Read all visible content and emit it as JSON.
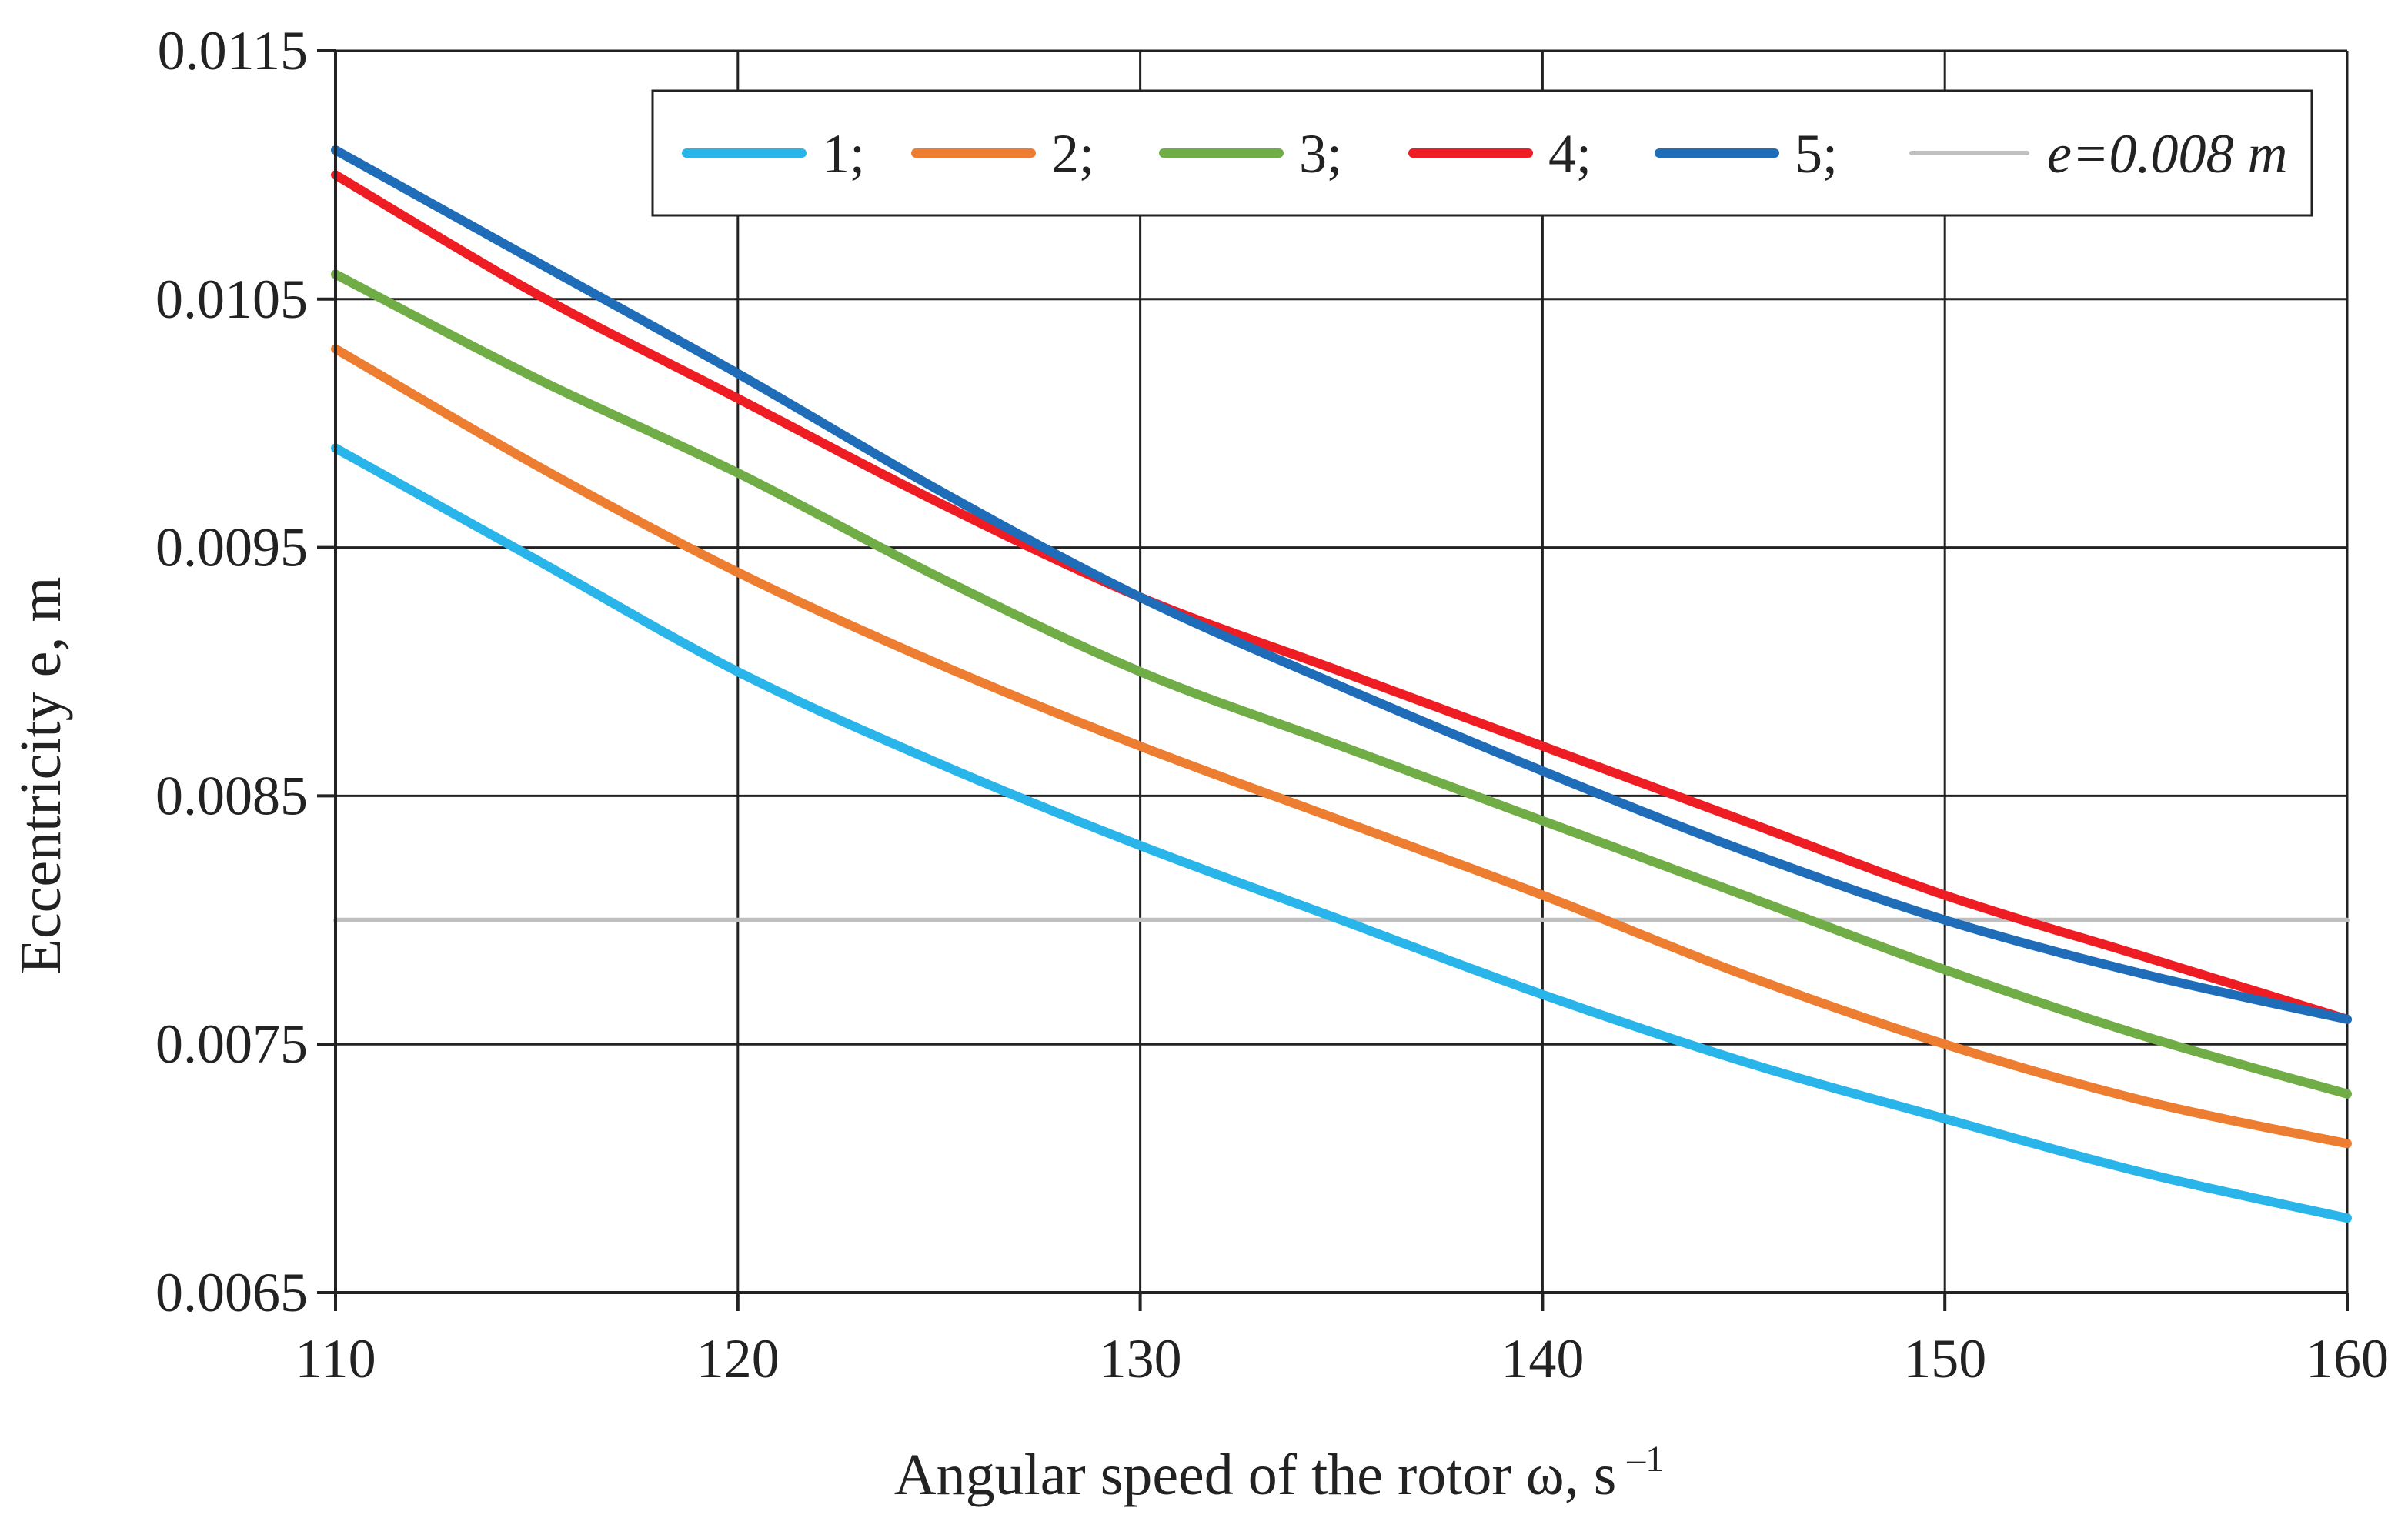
{
  "chart_data": {
    "type": "line",
    "title": "",
    "xlabel": "Angular speed of the rotor ω, s",
    "xlabel_superscript": "–1",
    "ylabel": "Eccentricity e, m",
    "xlim": [
      110,
      160
    ],
    "ylim": [
      0.0065,
      0.0115
    ],
    "x_ticks": [
      110,
      120,
      130,
      140,
      150,
      160
    ],
    "x_tick_labels": [
      "110",
      "120",
      "130",
      "140",
      "150",
      "160"
    ],
    "y_ticks": [
      0.0065,
      0.0075,
      0.0085,
      0.0095,
      0.0105,
      0.0115
    ],
    "y_tick_labels": [
      "0.0065",
      "0.0075",
      "0.0085",
      "0.0095",
      "0.0105",
      "0.0115"
    ],
    "grid": true,
    "legend_position": "top-right",
    "series": [
      {
        "name": "1;",
        "color": "#29b5ea",
        "x": [
          110,
          115,
          120,
          125,
          130,
          135,
          140,
          145,
          150,
          155,
          160
        ],
        "values": [
          0.0099,
          0.00945,
          0.009,
          0.00863,
          0.0083,
          0.008,
          0.0077,
          0.00743,
          0.0072,
          0.00698,
          0.0068
        ]
      },
      {
        "name": "2;",
        "color": "#ed7d31",
        "x": [
          110,
          115,
          120,
          125,
          130,
          135,
          140,
          145,
          150,
          155,
          160
        ],
        "values": [
          0.0103,
          0.00983,
          0.0094,
          0.00903,
          0.0087,
          0.0084,
          0.0081,
          0.00778,
          0.0075,
          0.00727,
          0.0071
        ]
      },
      {
        "name": "3;",
        "color": "#70ad47",
        "x": [
          110,
          115,
          120,
          125,
          130,
          135,
          140,
          145,
          150,
          155,
          160
        ],
        "values": [
          0.0106,
          0.01018,
          0.0098,
          0.00938,
          0.009,
          0.0087,
          0.0084,
          0.0081,
          0.0078,
          0.00753,
          0.0073
        ]
      },
      {
        "name": "4;",
        "color": "#ee1c23",
        "x": [
          110,
          115,
          120,
          125,
          130,
          135,
          140,
          145,
          150,
          155,
          160
        ],
        "values": [
          0.011,
          0.01052,
          0.0101,
          0.00968,
          0.0093,
          0.009,
          0.0087,
          0.0084,
          0.0081,
          0.00785,
          0.0076
        ]
      },
      {
        "name": "5;",
        "color": "#1f6db8",
        "x": [
          110,
          115,
          120,
          125,
          130,
          135,
          140,
          145,
          150,
          155,
          160
        ],
        "values": [
          0.0111,
          0.01065,
          0.0102,
          0.00973,
          0.0093,
          0.00894,
          0.0086,
          0.00828,
          0.008,
          0.00778,
          0.0076
        ]
      },
      {
        "name": "e=0.008 m",
        "color": "#bfbfbf",
        "x": [
          110,
          160
        ],
        "values": [
          0.008,
          0.008
        ]
      }
    ]
  }
}
